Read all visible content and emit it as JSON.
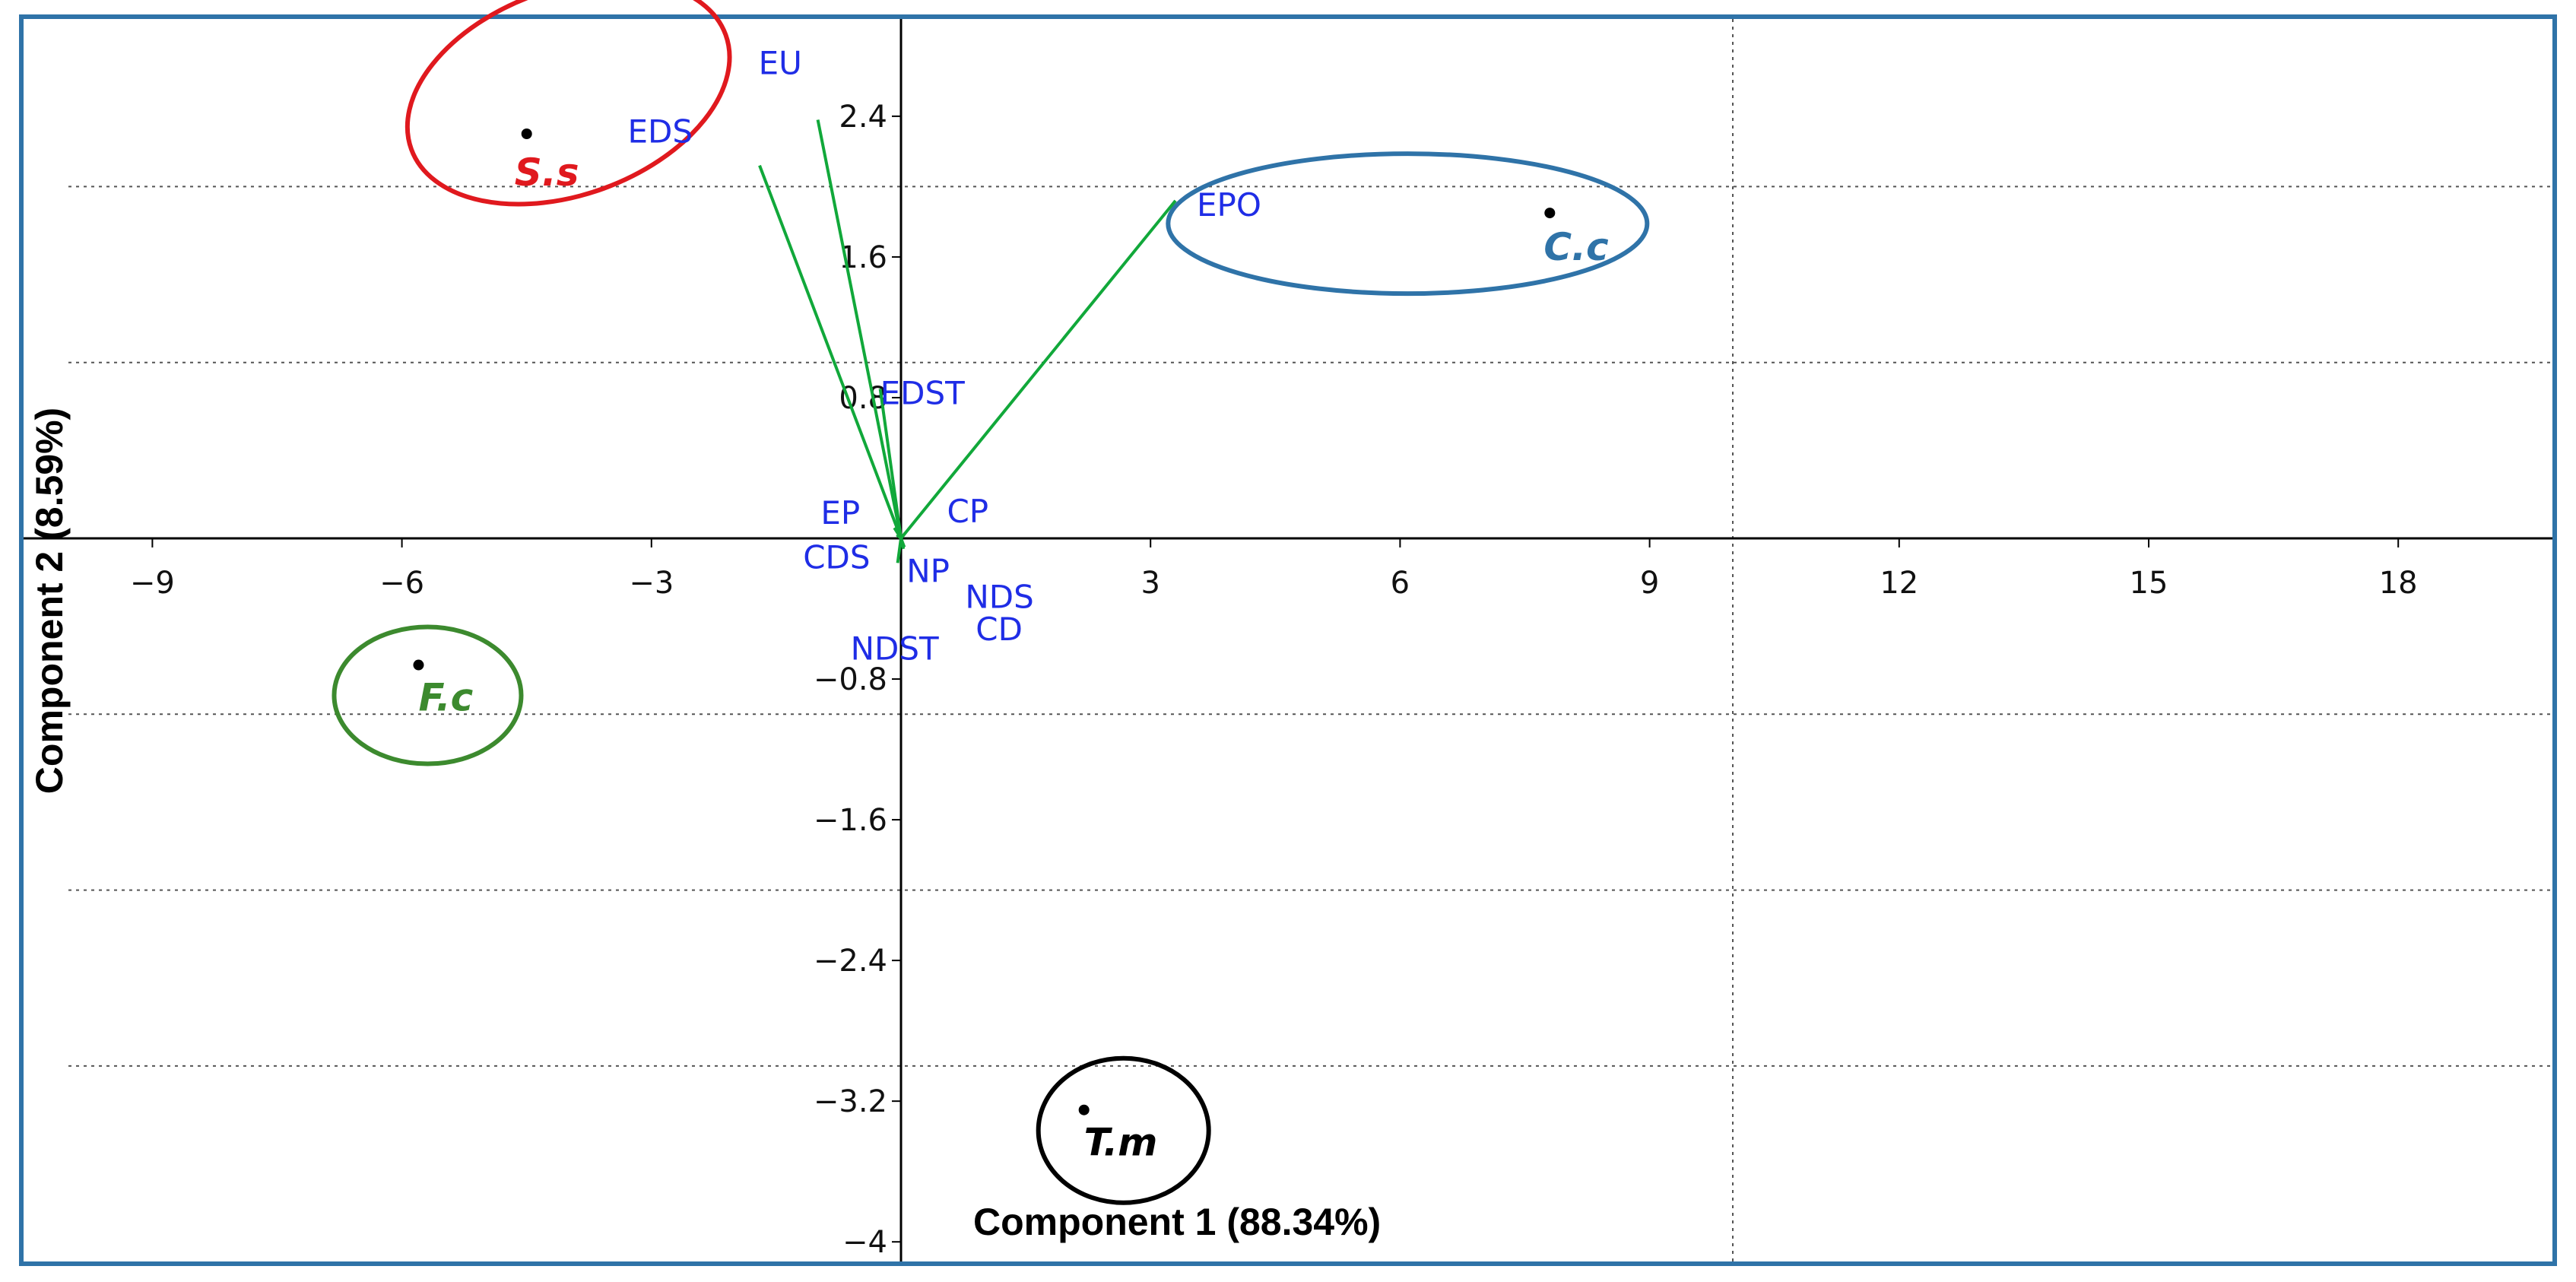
{
  "chart_data": {
    "type": "scatter",
    "subtype": "pca-biplot",
    "title": "",
    "xlabel": "Component 1 (88.34%)",
    "ylabel": "Component 2 (8.59%)",
    "xlim": [
      -10.5,
      20
    ],
    "ylim": [
      -4.1,
      3.0
    ],
    "xticks": [
      -9,
      -6,
      -3,
      3,
      6,
      9,
      12,
      15,
      18
    ],
    "yticks": [
      2.4,
      1.6,
      0.8,
      -0.8,
      -1.6,
      -2.4,
      -3.2,
      -4
    ],
    "xtick_labels": [
      "−9",
      "−6",
      "−3",
      "3",
      "6",
      "9",
      "12",
      "15",
      "18"
    ],
    "ytick_labels": [
      "2.4",
      "1.6",
      "0.8",
      "−0.8",
      "−1.6",
      "−2.4",
      "−3.2",
      "−4"
    ],
    "grid": {
      "vertical": [
        10
      ],
      "horizontal": [
        2.0,
        1.0,
        -1.0,
        -2.0,
        -3.0
      ]
    },
    "grid_style": "dotted",
    "border_color": "#2f73a8",
    "loading_color": "#11a83a",
    "variable_label_color": "#1f2de6",
    "observations": [
      {
        "label": "S.s",
        "x": -4.5,
        "y": 2.3,
        "color": "#e0191e"
      },
      {
        "label": "C.c",
        "x": 7.8,
        "y": 1.85,
        "color": "#2f73a8"
      },
      {
        "label": "F.c",
        "x": -5.8,
        "y": -0.72,
        "color": "#3c8a2e"
      },
      {
        "label": "T.m",
        "x": 2.2,
        "y": -3.25,
        "color": "#000000"
      }
    ],
    "loadings": [
      {
        "label": "EU",
        "x": -1.0,
        "y": 2.38
      },
      {
        "label": "EDS",
        "x": -1.7,
        "y": 2.12
      },
      {
        "label": "EPO",
        "x": 3.3,
        "y": 1.92
      },
      {
        "label": "EDST",
        "x": -0.25,
        "y": 0.85
      },
      {
        "label": "EP",
        "x": -0.08,
        "y": 0.06
      },
      {
        "label": "CDS",
        "x": -0.05,
        "y": 0.02
      },
      {
        "label": "CP",
        "x": 0.05,
        "y": 0.03
      },
      {
        "label": "NP",
        "x": 0.02,
        "y": -0.04
      },
      {
        "label": "NDS",
        "x": 0.04,
        "y": -0.05
      },
      {
        "label": "CD",
        "x": 0.03,
        "y": -0.06
      },
      {
        "label": "NDST",
        "x": -0.04,
        "y": -0.14
      }
    ]
  }
}
